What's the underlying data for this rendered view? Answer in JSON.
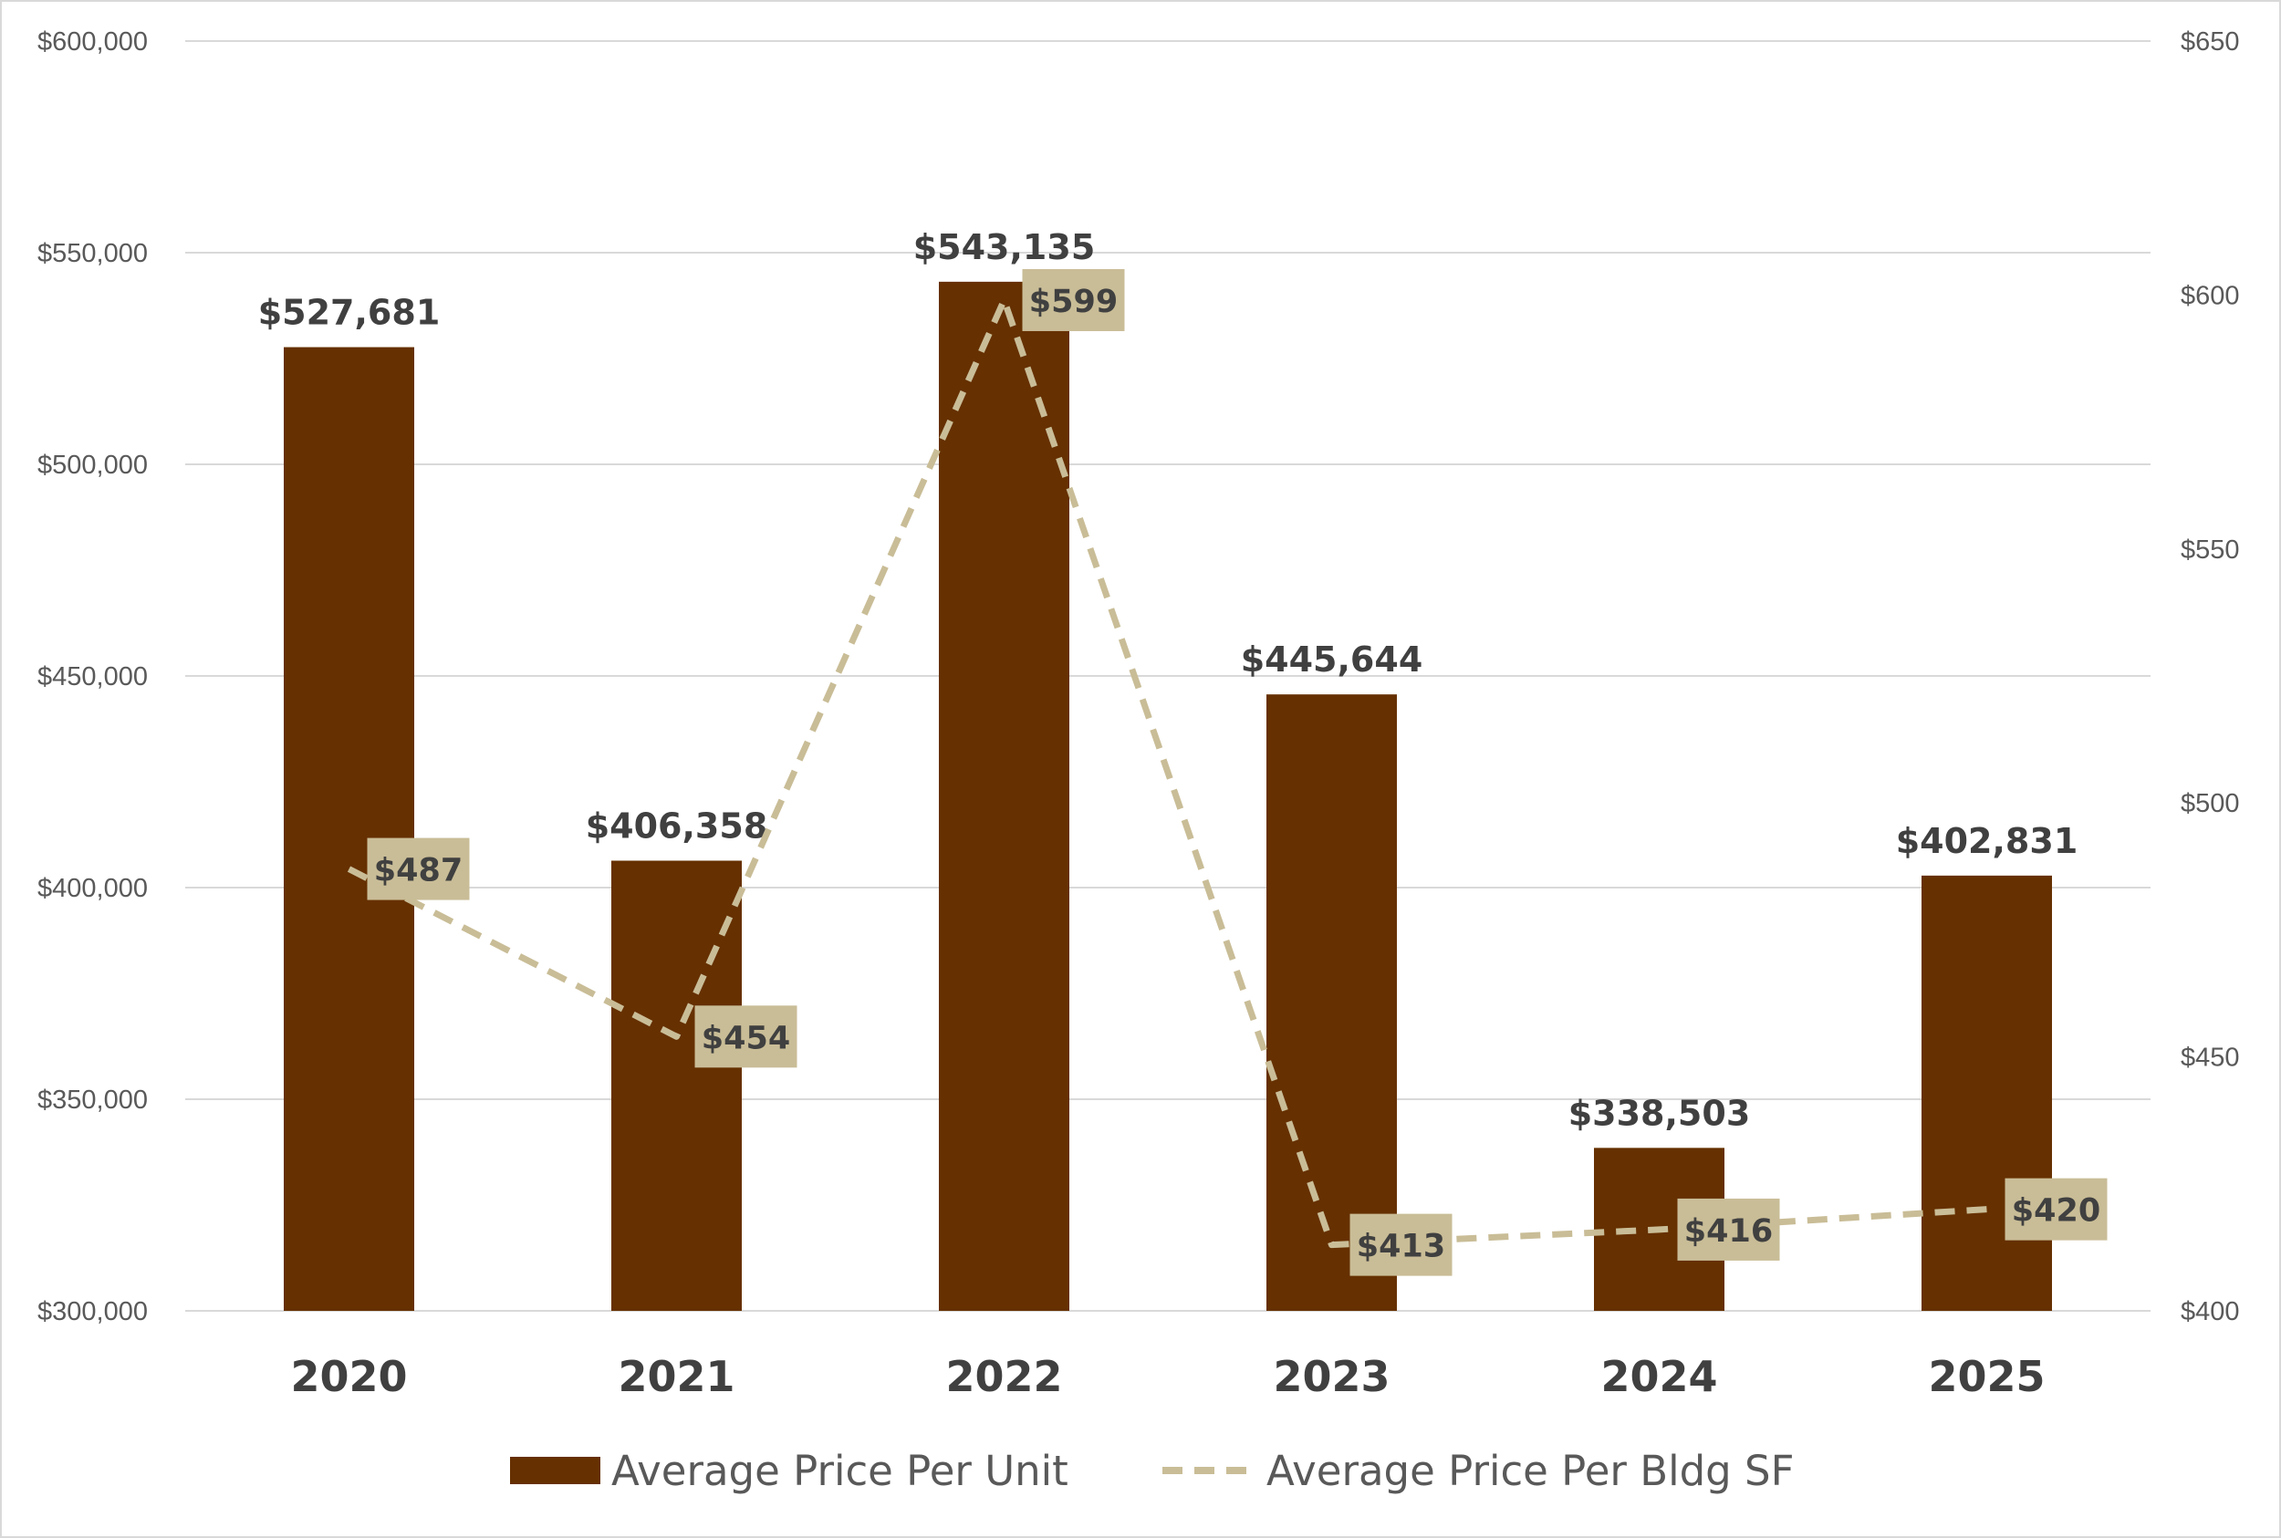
{
  "chart_data": {
    "type": "bar",
    "categories": [
      "2020",
      "2021",
      "2022",
      "2023",
      "2024",
      "2025"
    ],
    "series": [
      {
        "name": "Average Price Per Unit",
        "type": "bar",
        "axis": "left",
        "color": "#663000",
        "values": [
          527681,
          406358,
          543135,
          445644,
          338503,
          402831
        ],
        "labels": [
          "$527,681",
          "$406,358",
          "$543,135",
          "$445,644",
          "$338,503",
          "$402,831"
        ]
      },
      {
        "name": "Average Price Per Bldg SF",
        "type": "line",
        "style": "dashed",
        "axis": "right",
        "color": "#c9bd97",
        "values": [
          487,
          454,
          599,
          413,
          416,
          420
        ],
        "labels": [
          "$487",
          "$454",
          "$599",
          "$413",
          "$416",
          "$420"
        ]
      }
    ],
    "y_left": {
      "ylim": [
        300000,
        600000
      ],
      "ticks": [
        300000,
        350000,
        400000,
        450000,
        500000,
        550000,
        600000
      ],
      "tick_labels": [
        "$300,000",
        "$350,000",
        "$400,000",
        "$450,000",
        "$500,000",
        "$550,000",
        "$600,000"
      ]
    },
    "y_right": {
      "ylim": [
        400,
        650
      ],
      "ticks": [
        400,
        450,
        500,
        550,
        600,
        650
      ],
      "tick_labels": [
        "$400",
        "$450",
        "$500",
        "$550",
        "$600",
        "$650"
      ]
    },
    "grid": true,
    "legend_position": "bottom",
    "colors": {
      "label_box": "#c9bd97",
      "text": "#404040",
      "grid": "#d9d9d9"
    }
  }
}
